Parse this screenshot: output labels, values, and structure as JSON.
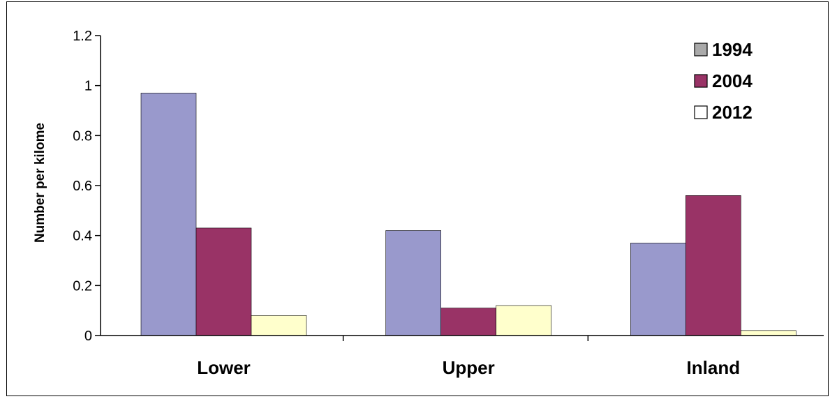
{
  "chart_data": {
    "type": "bar",
    "title": "",
    "xlabel": "",
    "ylabel": "Number per kilome",
    "categories": [
      "Lower",
      "Upper",
      "Inland"
    ],
    "series": [
      {
        "name": "1994",
        "values": [
          0.97,
          0.42,
          0.37
        ],
        "color": "#9999cc"
      },
      {
        "name": "2004",
        "values": [
          0.43,
          0.11,
          0.56
        ],
        "color": "#993366"
      },
      {
        "name": "2012",
        "values": [
          0.08,
          0.12,
          0.02
        ],
        "color": "#ffffcc"
      }
    ],
    "ylim": [
      0,
      1.2
    ],
    "yticks": [
      0,
      0.2,
      0.4,
      0.6,
      0.8,
      1,
      1.2
    ],
    "ytick_labels": [
      "0",
      "0.2",
      "0.4",
      "0.6",
      "0.8",
      "1",
      "1.2"
    ],
    "grid": false,
    "legend_position": "top-right",
    "legend_swatch_colors": [
      "#aaaaaa",
      "#993366",
      "#ffffff"
    ]
  }
}
